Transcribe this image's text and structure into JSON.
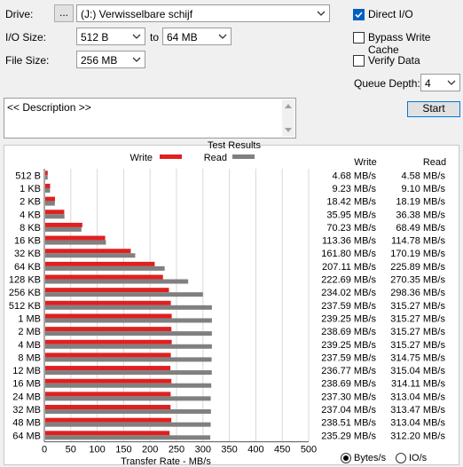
{
  "form": {
    "drive_label": "Drive:",
    "browse_label": "...",
    "drive_value": "(J:) Verwisselbare schijf",
    "io_size_label": "I/O Size:",
    "io_from": "512 B",
    "io_to_label": "to",
    "io_to": "64 MB",
    "file_size_label": "File Size:",
    "file_size": "256 MB",
    "description": "<< Description >>"
  },
  "options": {
    "direct_io": {
      "label": "Direct I/O",
      "checked": true
    },
    "bypass_write_cache": {
      "label": "Bypass Write Cache",
      "checked": false
    },
    "verify_data": {
      "label": "Verify Data",
      "checked": false
    },
    "queue_depth_label": "Queue Depth:",
    "queue_depth": "4",
    "start_label": "Start"
  },
  "units": {
    "bytes_label": "Bytes/s",
    "io_label": "IO/s",
    "selected": "bytes"
  },
  "colors": {
    "write": "#e02020",
    "read": "#808080"
  },
  "chart_data": {
    "type": "bar",
    "title": "Test Results",
    "xlabel": "Transfer Rate - MB/s",
    "xlim": [
      0,
      500
    ],
    "xticks": [
      "0",
      "50",
      "100",
      "150",
      "200",
      "250",
      "300",
      "350",
      "400",
      "450",
      "500"
    ],
    "categories": [
      "512 B",
      "1 KB",
      "2 KB",
      "4 KB",
      "8 KB",
      "16 KB",
      "32 KB",
      "64 KB",
      "128 KB",
      "256 KB",
      "512 KB",
      "1 MB",
      "2 MB",
      "4 MB",
      "8 MB",
      "12 MB",
      "16 MB",
      "24 MB",
      "32 MB",
      "48 MB",
      "64 MB"
    ],
    "series": [
      {
        "name": "Write",
        "values": [
          4.68,
          9.23,
          18.42,
          35.95,
          70.23,
          113.36,
          161.8,
          207.11,
          222.69,
          234.02,
          237.59,
          239.25,
          238.69,
          239.25,
          237.59,
          236.77,
          238.69,
          237.3,
          237.04,
          238.51,
          235.29
        ]
      },
      {
        "name": "Read",
        "values": [
          4.58,
          9.1,
          18.19,
          36.38,
          68.49,
          114.78,
          170.19,
          225.89,
          270.35,
          298.36,
          315.27,
          315.27,
          315.27,
          315.27,
          314.75,
          315.04,
          314.11,
          313.04,
          313.47,
          313.04,
          312.2
        ]
      }
    ],
    "table_headers": {
      "write": "Write",
      "read": "Read"
    },
    "write_labels": [
      "4.68 MB/s",
      "9.23 MB/s",
      "18.42 MB/s",
      "35.95 MB/s",
      "70.23 MB/s",
      "113.36 MB/s",
      "161.80 MB/s",
      "207.11 MB/s",
      "222.69 MB/s",
      "234.02 MB/s",
      "237.59 MB/s",
      "239.25 MB/s",
      "238.69 MB/s",
      "239.25 MB/s",
      "237.59 MB/s",
      "236.77 MB/s",
      "238.69 MB/s",
      "237.30 MB/s",
      "237.04 MB/s",
      "238.51 MB/s",
      "235.29 MB/s"
    ],
    "read_labels": [
      "4.58 MB/s",
      "9.10 MB/s",
      "18.19 MB/s",
      "36.38 MB/s",
      "68.49 MB/s",
      "114.78 MB/s",
      "170.19 MB/s",
      "225.89 MB/s",
      "270.35 MB/s",
      "298.36 MB/s",
      "315.27 MB/s",
      "315.27 MB/s",
      "315.27 MB/s",
      "315.27 MB/s",
      "314.75 MB/s",
      "315.04 MB/s",
      "314.11 MB/s",
      "313.04 MB/s",
      "313.47 MB/s",
      "313.04 MB/s",
      "312.20 MB/s"
    ]
  }
}
